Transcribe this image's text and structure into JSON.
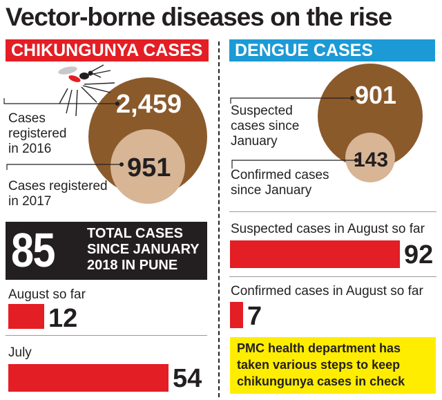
{
  "title": "Vector-borne diseases on the rise",
  "chikungunya": {
    "header": "CHIKUNGUNYA CASES",
    "label_2016": "Cases registered in 2016",
    "value_2016": "2,459",
    "label_2017": "Cases registered in 2017",
    "value_2017": "951",
    "total_value": "85",
    "total_label": "TOTAL CASES SINCE JANUARY 2018 IN PUNE",
    "august_label": "August so far",
    "august_value": "12",
    "july_label": "July",
    "july_value": "54"
  },
  "dengue": {
    "header": "DENGUE CASES",
    "suspected_label": "Suspected cases since January",
    "suspected_value": "901",
    "confirmed_label": "Confirmed cases since January",
    "confirmed_value": "143",
    "aug_suspected_label": "Suspected cases in August so far",
    "aug_suspected_value": "92",
    "aug_confirmed_label": "Confirmed cases in August so far",
    "aug_confirmed_value": "7"
  },
  "note": "PMC health department has taken various steps to keep chikungunya cases in check",
  "colors": {
    "red": "#e31e24",
    "blue": "#1b9ad6",
    "brown": "#8b5a2b",
    "light_brown": "#d7b595",
    "black": "#231f20",
    "yellow": "#ffed00"
  },
  "chart_data": [
    {
      "type": "bubble",
      "title": "CHIKUNGUNYA CASES",
      "categories": [
        "Cases registered in 2016",
        "Cases registered in 2017"
      ],
      "values": [
        2459,
        951
      ]
    },
    {
      "type": "bar",
      "title": "TOTAL CASES SINCE JANUARY 2018 IN PUNE",
      "total": 85,
      "categories": [
        "August so far",
        "July"
      ],
      "values": [
        12,
        54
      ]
    },
    {
      "type": "bubble",
      "title": "DENGUE CASES",
      "categories": [
        "Suspected cases since January",
        "Confirmed cases since January"
      ],
      "values": [
        901,
        143
      ]
    },
    {
      "type": "bar",
      "categories": [
        "Suspected cases in August so far",
        "Confirmed cases in August so far"
      ],
      "values": [
        92,
        7
      ]
    }
  ]
}
